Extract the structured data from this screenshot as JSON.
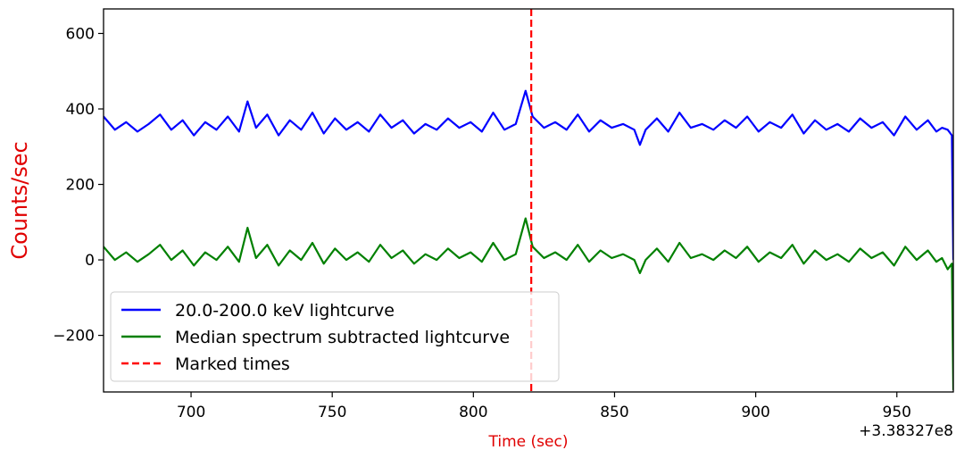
{
  "chart_data": {
    "type": "line",
    "title": "",
    "xlabel": "Time (sec)",
    "ylabel": "Counts/sec",
    "x_offset_label": "+3.38327e8",
    "xlim": [
      669,
      970
    ],
    "ylim": [
      -350,
      665
    ],
    "x_ticks": [
      700,
      750,
      800,
      850,
      900,
      950
    ],
    "y_ticks": [
      600,
      400,
      200,
      0,
      -200
    ],
    "y_tick_labels": [
      "600",
      "400",
      "200",
      "0",
      "−200"
    ],
    "grid": false,
    "legend_position": "lower-left",
    "marked_times": [
      820.5
    ],
    "series": [
      {
        "name": "20.0-200.0 keV lightcurve",
        "color": "#0000ff",
        "x": [
          669,
          673,
          677,
          681,
          685,
          689,
          693,
          697,
          701,
          705,
          709,
          713,
          717,
          720,
          723,
          727,
          731,
          735,
          739,
          743,
          747,
          751,
          755,
          759,
          763,
          767,
          771,
          775,
          779,
          783,
          787,
          791,
          795,
          799,
          803,
          807,
          811,
          815,
          818.5,
          821,
          825,
          829,
          833,
          837,
          841,
          845,
          849,
          853,
          857,
          859,
          861,
          865,
          869,
          873,
          877,
          881,
          885,
          889,
          893,
          897,
          901,
          905,
          909,
          913,
          917,
          921,
          925,
          929,
          933,
          937,
          941,
          945,
          949,
          953,
          957,
          961,
          964,
          966,
          968,
          969.5,
          970
        ],
        "values": [
          380,
          345,
          365,
          340,
          360,
          385,
          345,
          370,
          330,
          365,
          345,
          380,
          340,
          420,
          350,
          385,
          330,
          370,
          345,
          390,
          335,
          375,
          345,
          365,
          340,
          385,
          350,
          370,
          335,
          360,
          345,
          375,
          350,
          365,
          340,
          390,
          345,
          360,
          448,
          380,
          350,
          365,
          345,
          385,
          340,
          370,
          350,
          360,
          345,
          305,
          345,
          375,
          340,
          390,
          350,
          360,
          345,
          370,
          350,
          380,
          340,
          365,
          350,
          385,
          335,
          370,
          345,
          360,
          340,
          375,
          350,
          365,
          330,
          380,
          345,
          370,
          340,
          350,
          345,
          330,
          0
        ]
      },
      {
        "name": "Median spectrum subtracted lightcurve",
        "color": "#008000",
        "x": [
          669,
          673,
          677,
          681,
          685,
          689,
          693,
          697,
          701,
          705,
          709,
          713,
          717,
          720,
          723,
          727,
          731,
          735,
          739,
          743,
          747,
          751,
          755,
          759,
          763,
          767,
          771,
          775,
          779,
          783,
          787,
          791,
          795,
          799,
          803,
          807,
          811,
          815,
          818.5,
          821,
          825,
          829,
          833,
          837,
          841,
          845,
          849,
          853,
          857,
          859,
          861,
          865,
          869,
          873,
          877,
          881,
          885,
          889,
          893,
          897,
          901,
          905,
          909,
          913,
          917,
          921,
          925,
          929,
          933,
          937,
          941,
          945,
          949,
          953,
          957,
          961,
          964,
          966,
          968,
          969.5,
          970
        ],
        "values": [
          35,
          0,
          20,
          -5,
          15,
          40,
          0,
          25,
          -15,
          20,
          0,
          35,
          -5,
          85,
          5,
          40,
          -15,
          25,
          0,
          45,
          -10,
          30,
          0,
          20,
          -5,
          40,
          5,
          25,
          -10,
          15,
          0,
          30,
          5,
          20,
          -5,
          45,
          0,
          15,
          110,
          35,
          5,
          20,
          0,
          40,
          -5,
          25,
          5,
          15,
          0,
          -35,
          0,
          30,
          -5,
          45,
          5,
          15,
          0,
          25,
          5,
          35,
          -5,
          20,
          5,
          40,
          -10,
          25,
          0,
          15,
          -5,
          30,
          5,
          20,
          -15,
          35,
          0,
          25,
          -5,
          5,
          -25,
          -10,
          -345
        ]
      }
    ]
  },
  "legend": {
    "items": [
      {
        "label": "20.0-200.0 keV lightcurve",
        "color": "#0000ff",
        "style": "solid"
      },
      {
        "label": "Median spectrum subtracted lightcurve",
        "color": "#008000",
        "style": "solid"
      },
      {
        "label": "Marked times",
        "color": "#ff0000",
        "style": "dashed"
      }
    ]
  }
}
